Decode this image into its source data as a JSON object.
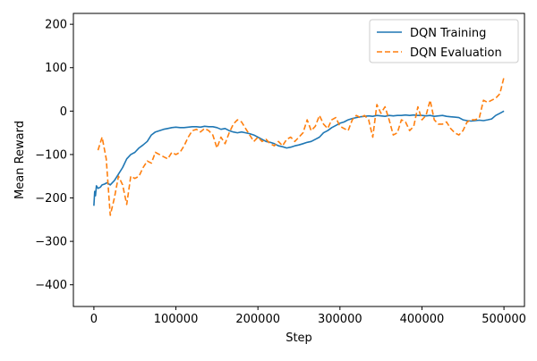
{
  "chart_data": {
    "type": "line",
    "title": "",
    "xlabel": "Step",
    "ylabel": "Mean Reward",
    "xlim": [
      -25000,
      525000
    ],
    "ylim": [
      -450,
      225
    ],
    "xticks": [
      0,
      100000,
      200000,
      300000,
      400000,
      500000
    ],
    "xtick_labels": [
      "0",
      "100000",
      "200000",
      "300000",
      "400000",
      "500000"
    ],
    "yticks": [
      -400,
      -300,
      -200,
      -100,
      0,
      100,
      200
    ],
    "ytick_labels": [
      "−400",
      "−300",
      "−200",
      "−100",
      "0",
      "100",
      "200"
    ],
    "grid": false,
    "legend": "top-right",
    "colors": {
      "training": "#1f77b4",
      "evaluation": "#ff7f0e",
      "axes": "#000000",
      "legend_border": "#cccccc"
    },
    "series": [
      {
        "name": "DQN Training",
        "style": "solid",
        "x": [
          0,
          1000,
          2000,
          3000,
          5000,
          8000,
          10000,
          13000,
          16000,
          20000,
          25000,
          30000,
          35000,
          40000,
          45000,
          50000,
          55000,
          60000,
          65000,
          70000,
          75000,
          80000,
          85000,
          90000,
          95000,
          100000,
          105000,
          110000,
          115000,
          120000,
          125000,
          130000,
          135000,
          140000,
          145000,
          150000,
          155000,
          160000,
          165000,
          170000,
          175000,
          180000,
          185000,
          190000,
          195000,
          200000,
          205000,
          210000,
          215000,
          220000,
          225000,
          230000,
          235000,
          240000,
          245000,
          250000,
          255000,
          260000,
          265000,
          270000,
          275000,
          280000,
          285000,
          290000,
          295000,
          300000,
          305000,
          310000,
          315000,
          320000,
          325000,
          330000,
          335000,
          340000,
          345000,
          350000,
          355000,
          360000,
          365000,
          370000,
          375000,
          380000,
          385000,
          390000,
          395000,
          400000,
          405000,
          410000,
          415000,
          420000,
          425000,
          430000,
          435000,
          440000,
          445000,
          450000,
          455000,
          460000,
          465000,
          470000,
          475000,
          480000,
          485000,
          490000,
          495000,
          500000
        ],
        "y": [
          -218,
          -185,
          -195,
          -172,
          -178,
          -175,
          -170,
          -168,
          -165,
          -170,
          -160,
          -145,
          -130,
          -110,
          -100,
          -95,
          -85,
          -78,
          -70,
          -55,
          -48,
          -45,
          -42,
          -40,
          -38,
          -37,
          -38,
          -38,
          -37,
          -36,
          -36,
          -37,
          -35,
          -36,
          -36,
          -38,
          -42,
          -40,
          -45,
          -48,
          -50,
          -48,
          -50,
          -52,
          -55,
          -60,
          -65,
          -70,
          -72,
          -75,
          -80,
          -82,
          -85,
          -83,
          -80,
          -78,
          -75,
          -72,
          -70,
          -65,
          -60,
          -50,
          -45,
          -38,
          -33,
          -28,
          -25,
          -20,
          -17,
          -15,
          -13,
          -12,
          -11,
          -12,
          -10,
          -11,
          -12,
          -10,
          -11,
          -10,
          -10,
          -9,
          -10,
          -9,
          -10,
          -10,
          -11,
          -10,
          -12,
          -11,
          -10,
          -12,
          -13,
          -14,
          -15,
          -20,
          -22,
          -23,
          -22,
          -21,
          -22,
          -20,
          -18,
          -10,
          -5,
          0
        ]
      },
      {
        "name": "DQN Evaluation",
        "style": "dashed",
        "x": [
          5000,
          10000,
          15000,
          20000,
          25000,
          30000,
          35000,
          40000,
          45000,
          50000,
          55000,
          60000,
          65000,
          70000,
          75000,
          80000,
          85000,
          90000,
          95000,
          100000,
          105000,
          110000,
          115000,
          120000,
          125000,
          130000,
          135000,
          140000,
          145000,
          150000,
          155000,
          160000,
          165000,
          170000,
          175000,
          180000,
          185000,
          190000,
          195000,
          200000,
          205000,
          210000,
          215000,
          220000,
          225000,
          230000,
          235000,
          240000,
          245000,
          250000,
          255000,
          260000,
          265000,
          270000,
          275000,
          280000,
          285000,
          290000,
          295000,
          300000,
          305000,
          310000,
          315000,
          320000,
          325000,
          330000,
          335000,
          340000,
          345000,
          350000,
          355000,
          360000,
          365000,
          370000,
          375000,
          380000,
          385000,
          390000,
          395000,
          400000,
          405000,
          410000,
          415000,
          420000,
          425000,
          430000,
          435000,
          440000,
          445000,
          450000,
          455000,
          460000,
          465000,
          470000,
          475000,
          480000,
          485000,
          490000,
          495000,
          500000
        ],
        "y": [
          -90,
          -60,
          -110,
          -240,
          -200,
          -150,
          -170,
          -215,
          -150,
          -155,
          -150,
          -130,
          -115,
          -120,
          -95,
          -100,
          -105,
          -110,
          -95,
          -100,
          -95,
          -80,
          -60,
          -45,
          -42,
          -48,
          -40,
          -45,
          -55,
          -85,
          -60,
          -75,
          -50,
          -30,
          -20,
          -25,
          -40,
          -55,
          -70,
          -60,
          -70,
          -65,
          -75,
          -80,
          -70,
          -80,
          -65,
          -60,
          -70,
          -60,
          -50,
          -20,
          -45,
          -35,
          -10,
          -30,
          -40,
          -20,
          -15,
          -35,
          -40,
          -45,
          -20,
          -10,
          -15,
          -10,
          -20,
          -60,
          15,
          -5,
          10,
          -20,
          -55,
          -50,
          -20,
          -25,
          -45,
          -35,
          10,
          -20,
          -10,
          25,
          -20,
          -30,
          -30,
          -25,
          -40,
          -50,
          -55,
          -45,
          -25,
          -20,
          -20,
          -15,
          25,
          20,
          25,
          30,
          40,
          78
        ]
      }
    ]
  }
}
